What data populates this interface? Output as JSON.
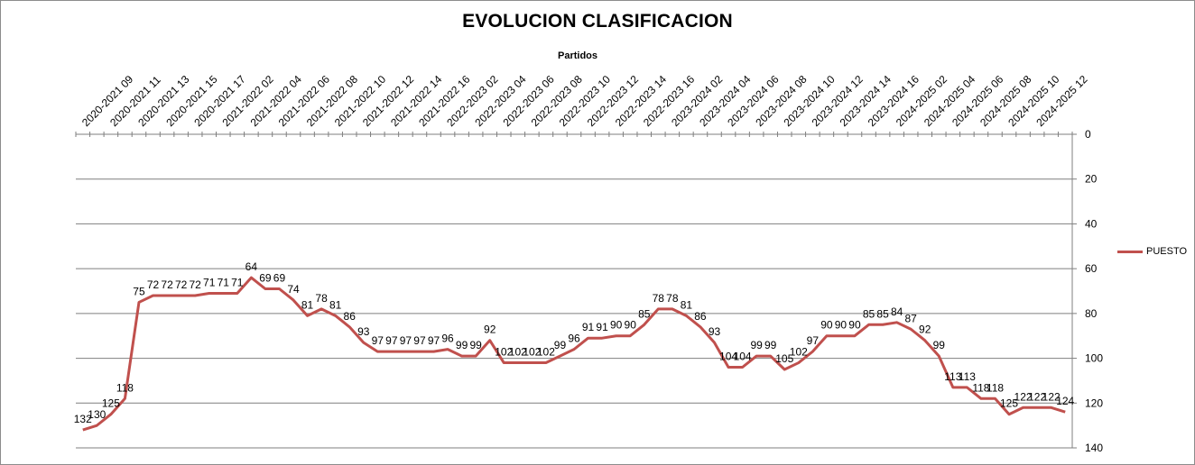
{
  "chart_data": {
    "type": "line",
    "title": "EVOLUCION CLASIFICACION",
    "xlabel": "Partidos",
    "ylabel": "",
    "ylim": [
      0,
      140
    ],
    "y_inverted": true,
    "y_axis_side": "right",
    "x_axis_side": "top",
    "y_ticks": [
      0,
      20,
      40,
      60,
      80,
      100,
      120,
      140
    ],
    "grid": true,
    "legend_position": "right",
    "x_tick_labels": [
      "2020-2021 09",
      "2020-2021 11",
      "2020-2021 13",
      "2020-2021 15",
      "2020-2021 17",
      "2021-2022 02",
      "2021-2022 04",
      "2021-2022 06",
      "2021-2022 08",
      "2021-2022 10",
      "2021-2022 12",
      "2021-2022 14",
      "2021-2022 16",
      "2022-2023 02",
      "2022-2023 04",
      "2022-2023 06",
      "2022-2023 08",
      "2022-2023 10",
      "2022-2023 12",
      "2022-2023 14",
      "2022-2023 16",
      "2023-2024 02",
      "2023-2024 04",
      "2023-2024 06",
      "2023-2024 08",
      "2023-2024 10",
      "2023-2024 12",
      "2023-2024 14",
      "2023-2024 16",
      "2024-2025 02",
      "2024-2025 04",
      "2024-2025 06",
      "2024-2025 08",
      "2024-2025 10",
      "2024-2025 12"
    ],
    "series": [
      {
        "name": "PUESTO",
        "color": "#c0504d",
        "values": [
          132,
          130,
          125,
          118,
          75,
          72,
          72,
          72,
          72,
          71,
          71,
          71,
          64,
          69,
          69,
          74,
          81,
          78,
          81,
          86,
          93,
          97,
          97,
          97,
          97,
          97,
          96,
          99,
          99,
          92,
          102,
          102,
          102,
          102,
          99,
          96,
          91,
          91,
          90,
          90,
          85,
          78,
          78,
          81,
          86,
          93,
          104,
          104,
          99,
          99,
          105,
          102,
          97,
          90,
          90,
          90,
          85,
          85,
          84,
          87,
          92,
          99,
          113,
          113,
          118,
          118,
          125,
          122,
          122,
          122,
          124
        ]
      }
    ]
  }
}
